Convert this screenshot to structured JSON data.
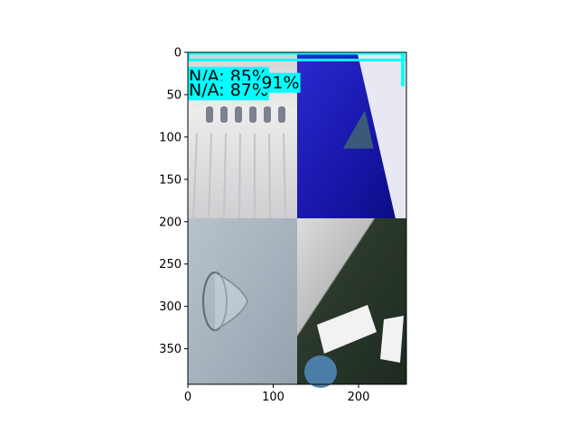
{
  "chart_data": {
    "type": "image",
    "xlim": [
      0,
      256
    ],
    "ylim": [
      392,
      0
    ],
    "x_ticks": [
      0,
      100,
      200
    ],
    "y_ticks": [
      0,
      50,
      100,
      150,
      200,
      250,
      300,
      350
    ],
    "x_tick_labels": [
      "0",
      "100",
      "200"
    ],
    "y_tick_labels": [
      "0",
      "50",
      "100",
      "150",
      "200",
      "250",
      "300",
      "350"
    ],
    "panels": [
      {
        "name": "hanging-garment",
        "x": [
          0,
          128
        ],
        "y": [
          0,
          196
        ],
        "base_color": "#e6e6e6"
      },
      {
        "name": "blue-folder",
        "x": [
          128,
          256
        ],
        "y": [
          0,
          196
        ],
        "base_color": "#1f1fb0"
      },
      {
        "name": "glass-cup",
        "x": [
          0,
          128
        ],
        "y": [
          196,
          392
        ],
        "base_color": "#a6b2bd"
      },
      {
        "name": "dark-panel-with-papers",
        "x": [
          128,
          256
        ],
        "y": [
          196,
          392
        ],
        "base_color": "#3a4a3a"
      }
    ],
    "detections": [
      {
        "text": "N/A: 85%",
        "x": 0,
        "y": 29
      },
      {
        "text": "N/A: 87%",
        "x": 0,
        "y": 45
      },
      {
        "text": "91%",
        "x": 85,
        "y": 36
      }
    ],
    "label_color": "#00ffff",
    "box_color": "#00ffff"
  }
}
